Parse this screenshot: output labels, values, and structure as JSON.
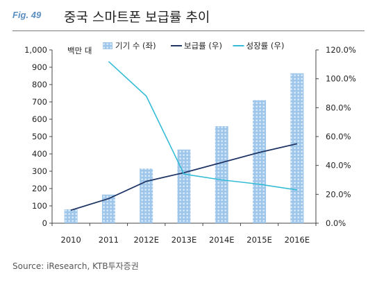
{
  "figure": {
    "label": "Fig. 49",
    "title": "중국 스마트폰 보급률 추이",
    "source": "Source: iResearch, KTB투자증권"
  },
  "colors": {
    "bar": "#9ec6ea",
    "penetration_line": "#1f3566",
    "growth_line": "#34bcd6",
    "label_accent": "#5a8fc0"
  },
  "chart_data": {
    "type": "bar",
    "categories": [
      "2010",
      "2011",
      "2012E",
      "2013E",
      "2014E",
      "2015E",
      "2016E"
    ],
    "y_left": {
      "unit_label": "백만 대",
      "ylim": [
        0,
        1000
      ],
      "ticks": [
        "0",
        "100",
        "200",
        "300",
        "400",
        "500",
        "600",
        "700",
        "800",
        "900",
        "1,000"
      ]
    },
    "y_right": {
      "ylim": [
        0,
        120
      ],
      "ticks": [
        "0.0%",
        "20.0%",
        "40.0%",
        "60.0%",
        "80.0%",
        "100.0%",
        "120.0%"
      ]
    },
    "series": [
      {
        "name": "기기 수 (좌)",
        "kind": "bar",
        "axis": "left",
        "values": [
          80,
          165,
          315,
          425,
          560,
          710,
          865
        ]
      },
      {
        "name": "보급률 (우)",
        "kind": "line",
        "axis": "right",
        "values": [
          9,
          17,
          29,
          35,
          42,
          49,
          55
        ]
      },
      {
        "name": "성장률 (우)",
        "kind": "line",
        "axis": "right",
        "values": [
          null,
          112,
          88,
          34,
          30,
          27,
          23
        ]
      }
    ],
    "legend_position": "top",
    "grid": false
  }
}
